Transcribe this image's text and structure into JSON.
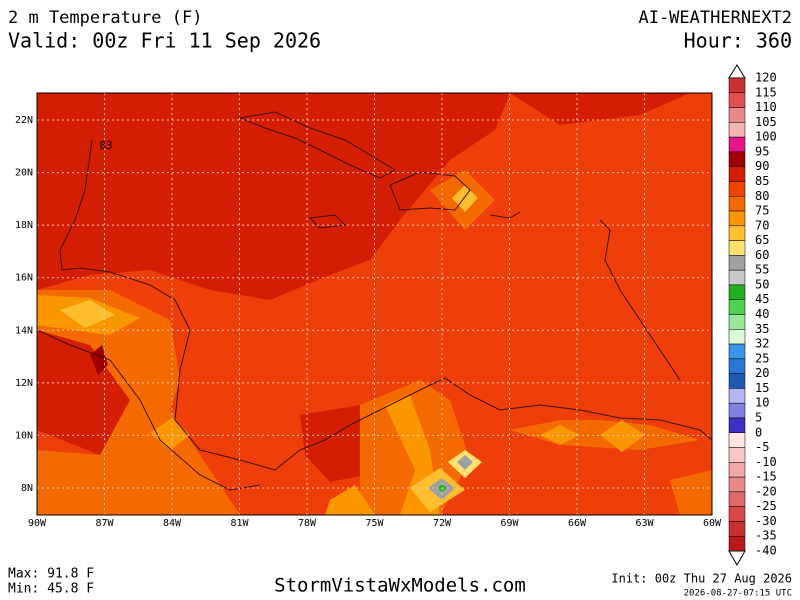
{
  "header": {
    "title": "2 m Temperature (F)",
    "valid": "Valid: 00z Fri 11 Sep 2026",
    "model": "AI-WEATHERNEXT2",
    "hour": "Hour: 360"
  },
  "map": {
    "lon_labels": [
      "90W",
      "87W",
      "84W",
      "81W",
      "78W",
      "75W",
      "72W",
      "69W",
      "66W",
      "63W",
      "60W"
    ],
    "lat_labels": [
      "8N",
      "10N",
      "12N",
      "14N",
      "16N",
      "18N",
      "20N",
      "22N"
    ],
    "point_label": "83"
  },
  "colorbar": {
    "levels": [
      120,
      115,
      110,
      105,
      100,
      95,
      90,
      85,
      80,
      75,
      70,
      65,
      60,
      55,
      50,
      45,
      40,
      35,
      32,
      25,
      20,
      15,
      10,
      5,
      0,
      -5,
      -10,
      -15,
      -20,
      -25,
      -30,
      -35,
      -40
    ],
    "colors": [
      "#c83232",
      "#e05050",
      "#e88888",
      "#f4b4b4",
      "#e8148c",
      "#a00000",
      "#d21e00",
      "#ee4400",
      "#f56a00",
      "#fa9600",
      "#ffbe30",
      "#ffe070",
      "#a0a0a0",
      "#c8c8c8",
      "#22b022",
      "#50d050",
      "#98e898",
      "#d8f8d8",
      "#3c96e6",
      "#2878d2",
      "#1e5ab4",
      "#b4b4f0",
      "#8080e0",
      "#4030c0",
      "#ffe4e4",
      "#f8c8c8",
      "#f0a8a8",
      "#e88888",
      "#e06868",
      "#d84848",
      "#c83030",
      "#b81818"
    ]
  },
  "footer": {
    "max": "Max: 91.8 F",
    "min": "Min: 45.8 F",
    "site": "StormVistaWxModels.com",
    "init": "Init: 00z Thu 27 Aug 2026",
    "stamp": "2026-08-27-07:15 UTC"
  }
}
